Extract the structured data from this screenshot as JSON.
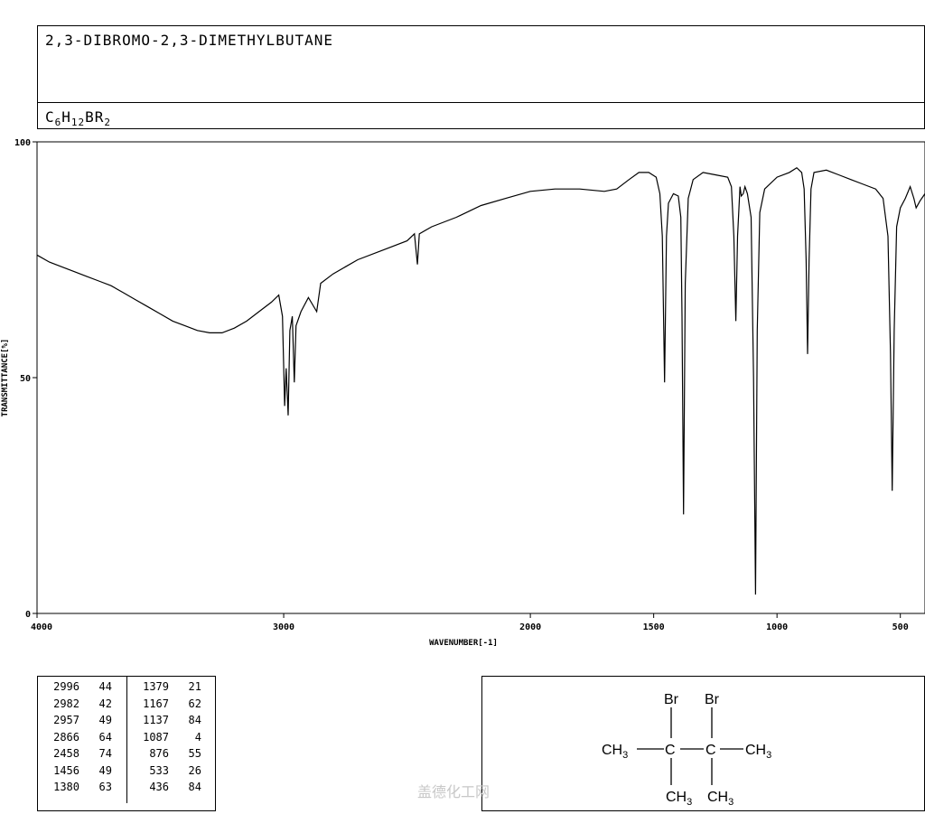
{
  "header": {
    "compound_name": "2,3-DIBROMO-2,3-DIMETHYLBUTANE",
    "formula_parts": [
      {
        "text": "C",
        "sub": "6"
      },
      {
        "text": "H",
        "sub": "12"
      },
      {
        "text": "BR",
        "sub": "2"
      }
    ]
  },
  "chart_data": {
    "type": "line",
    "xlabel": "WAVENUMBER[-1]",
    "ylabel": "TRANSMITTANCE[%]",
    "xlim": [
      4000,
      400
    ],
    "ylim": [
      0,
      100
    ],
    "x_reversed": true,
    "xticks": [
      4000,
      3000,
      2000,
      1500,
      1000,
      500
    ],
    "xtick_labels": [
      "4000",
      "3000",
      "2000",
      "1500",
      "1000",
      "500"
    ],
    "yticks": [
      0,
      50,
      100
    ],
    "ytick_labels": [
      "0",
      "50",
      "100"
    ],
    "series": [
      {
        "points": [
          [
            4000,
            76
          ],
          [
            3950,
            74.5
          ],
          [
            3900,
            73.5
          ],
          [
            3850,
            72.5
          ],
          [
            3800,
            71.5
          ],
          [
            3750,
            70.5
          ],
          [
            3700,
            69.5
          ],
          [
            3650,
            68
          ],
          [
            3600,
            66.5
          ],
          [
            3550,
            65
          ],
          [
            3500,
            63.5
          ],
          [
            3450,
            62
          ],
          [
            3400,
            61
          ],
          [
            3350,
            60
          ],
          [
            3300,
            59.5
          ],
          [
            3250,
            59.5
          ],
          [
            3200,
            60.5
          ],
          [
            3150,
            62
          ],
          [
            3100,
            64
          ],
          [
            3050,
            66
          ],
          [
            3020,
            67.5
          ],
          [
            3005,
            63
          ],
          [
            2996,
            44
          ],
          [
            2990,
            52
          ],
          [
            2982,
            42
          ],
          [
            2975,
            60
          ],
          [
            2965,
            63
          ],
          [
            2957,
            49
          ],
          [
            2950,
            61
          ],
          [
            2930,
            64
          ],
          [
            2900,
            67
          ],
          [
            2866,
            64
          ],
          [
            2850,
            70
          ],
          [
            2800,
            72
          ],
          [
            2700,
            75
          ],
          [
            2600,
            77
          ],
          [
            2500,
            79
          ],
          [
            2470,
            80.5
          ],
          [
            2458,
            74
          ],
          [
            2450,
            80.5
          ],
          [
            2400,
            82
          ],
          [
            2300,
            84
          ],
          [
            2200,
            86.5
          ],
          [
            2100,
            88
          ],
          [
            2000,
            89.5
          ],
          [
            1900,
            90
          ],
          [
            1800,
            90
          ],
          [
            1700,
            89.5
          ],
          [
            1650,
            90
          ],
          [
            1600,
            92
          ],
          [
            1560,
            93.5
          ],
          [
            1520,
            93.5
          ],
          [
            1490,
            92.5
          ],
          [
            1475,
            89
          ],
          [
            1465,
            80
          ],
          [
            1456,
            49
          ],
          [
            1448,
            80
          ],
          [
            1440,
            87
          ],
          [
            1420,
            89
          ],
          [
            1400,
            88.5
          ],
          [
            1390,
            84
          ],
          [
            1385,
            63
          ],
          [
            1379,
            21
          ],
          [
            1372,
            70
          ],
          [
            1360,
            88
          ],
          [
            1340,
            92
          ],
          [
            1300,
            93.5
          ],
          [
            1250,
            93
          ],
          [
            1200,
            92.5
          ],
          [
            1185,
            90.5
          ],
          [
            1175,
            80
          ],
          [
            1167,
            62
          ],
          [
            1160,
            80
          ],
          [
            1150,
            90.5
          ],
          [
            1145,
            88.5
          ],
          [
            1137,
            89
          ],
          [
            1130,
            90.5
          ],
          [
            1120,
            89
          ],
          [
            1105,
            84
          ],
          [
            1095,
            50
          ],
          [
            1087,
            4
          ],
          [
            1080,
            60
          ],
          [
            1070,
            85
          ],
          [
            1050,
            90
          ],
          [
            1000,
            92.5
          ],
          [
            950,
            93.5
          ],
          [
            920,
            94.5
          ],
          [
            900,
            93.5
          ],
          [
            890,
            90
          ],
          [
            882,
            75
          ],
          [
            876,
            55
          ],
          [
            870,
            75
          ],
          [
            862,
            90
          ],
          [
            850,
            93.5
          ],
          [
            800,
            94
          ],
          [
            750,
            93
          ],
          [
            700,
            92
          ],
          [
            650,
            91
          ],
          [
            600,
            90
          ],
          [
            570,
            88
          ],
          [
            550,
            80
          ],
          [
            540,
            55
          ],
          [
            533,
            26
          ],
          [
            525,
            60
          ],
          [
            515,
            82
          ],
          [
            500,
            86
          ],
          [
            480,
            88
          ],
          [
            460,
            90.5
          ],
          [
            445,
            88
          ],
          [
            436,
            86
          ],
          [
            420,
            87.5
          ],
          [
            400,
            89
          ]
        ]
      }
    ],
    "peaks": [
      [
        2996,
        44
      ],
      [
        2982,
        42
      ],
      [
        2957,
        49
      ],
      [
        2866,
        64
      ],
      [
        2458,
        74
      ],
      [
        1456,
        49
      ],
      [
        1380,
        63
      ],
      [
        1379,
        21
      ],
      [
        1167,
        62
      ],
      [
        1137,
        84
      ],
      [
        1087,
        4
      ],
      [
        876,
        55
      ],
      [
        533,
        26
      ],
      [
        436,
        84
      ]
    ]
  },
  "peak_table": {
    "left": [
      {
        "wn": "2996",
        "t": "44"
      },
      {
        "wn": "2982",
        "t": "42"
      },
      {
        "wn": "2957",
        "t": "49"
      },
      {
        "wn": "2866",
        "t": "64"
      },
      {
        "wn": "2458",
        "t": "74"
      },
      {
        "wn": "1456",
        "t": "49"
      },
      {
        "wn": "1380",
        "t": "63"
      }
    ],
    "right": [
      {
        "wn": "1379",
        "t": "21"
      },
      {
        "wn": "1167",
        "t": "62"
      },
      {
        "wn": "1137",
        "t": "84"
      },
      {
        "wn": "1087",
        "t": "4"
      },
      {
        "wn": "876",
        "t": "55"
      },
      {
        "wn": "533",
        "t": "26"
      },
      {
        "wn": "436",
        "t": "84"
      }
    ]
  },
  "structure": {
    "br_left": "Br",
    "br_right": "Br",
    "ch3_left": "CH",
    "ch3_right": "CH",
    "c_left": "C",
    "c_right": "C",
    "ch3_bottom_left": "CH",
    "ch3_bottom_right": "CH",
    "sub3": "3"
  },
  "watermark": "盖德化工网"
}
